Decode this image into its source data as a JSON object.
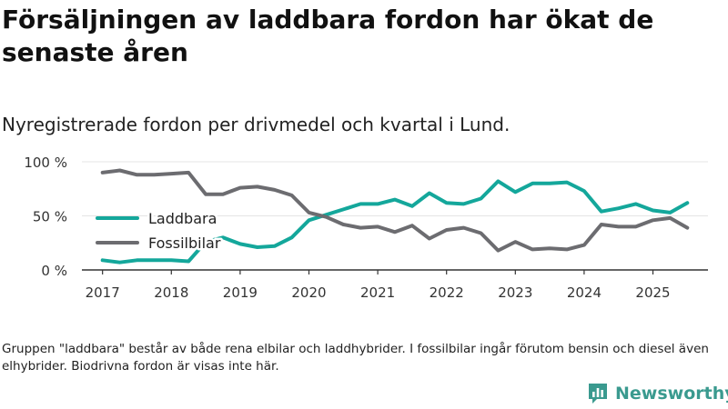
{
  "header": {
    "title": "Försäljningen av laddbara fordon har ökat de senaste åren",
    "subtitle": "Nyregistrerade fordon per drivmedel och kvartal i Lund."
  },
  "footer": {
    "note": "Gruppen \"laddbara\" består av både rena elbilar och laddhybrider. I fossilbilar ingår förutom bensin och diesel även elhybrider. Biodrivna fordon är visas inte här.",
    "brand": "Newsworthy"
  },
  "colors": {
    "laddbara": "#14a79b",
    "fossil": "#6c6c70",
    "brand": "#3a9a8f"
  },
  "chart_data": {
    "type": "line",
    "title": "Försäljningen av laddbara fordon har ökat de senaste åren",
    "subtitle": "Nyregistrerade fordon per drivmedel och kvartal i Lund.",
    "xlabel": "",
    "ylabel": "",
    "x": [
      2017.0,
      2017.25,
      2017.5,
      2017.75,
      2018.0,
      2018.25,
      2018.5,
      2018.75,
      2019.0,
      2019.25,
      2019.5,
      2019.75,
      2020.0,
      2020.25,
      2020.5,
      2020.75,
      2021.0,
      2021.25,
      2021.5,
      2021.75,
      2022.0,
      2022.25,
      2022.5,
      2022.75,
      2023.0,
      2023.25,
      2023.5,
      2023.75,
      2024.0,
      2024.25,
      2024.5,
      2024.75,
      2025.0,
      2025.25,
      2025.5
    ],
    "xlim": [
      2016.7,
      2025.8
    ],
    "ylim": [
      0,
      100
    ],
    "x_ticks": [
      2017,
      2018,
      2019,
      2020,
      2021,
      2022,
      2023,
      2024,
      2025
    ],
    "x_tick_labels": [
      "2017",
      "2018",
      "2019",
      "2020",
      "2021",
      "2022",
      "2023",
      "2024",
      "2025"
    ],
    "y_ticks": [
      0,
      50,
      100
    ],
    "y_tick_labels": [
      "0 %",
      "50 %",
      "100 %"
    ],
    "grid": true,
    "legend_position": "left",
    "series": [
      {
        "name": "Laddbara",
        "color": "#14a79b",
        "values": [
          9,
          7,
          9,
          9,
          9,
          8,
          26,
          30,
          24,
          21,
          22,
          30,
          46,
          51,
          56,
          61,
          61,
          65,
          59,
          71,
          62,
          61,
          66,
          82,
          72,
          80,
          80,
          81,
          73,
          54,
          57,
          61,
          55,
          53,
          62
        ]
      },
      {
        "name": "Fossilbilar",
        "color": "#6c6c70",
        "values": [
          90,
          92,
          88,
          88,
          89,
          90,
          70,
          70,
          76,
          77,
          74,
          69,
          53,
          49,
          42,
          39,
          40,
          35,
          41,
          29,
          37,
          39,
          34,
          18,
          26,
          19,
          20,
          19,
          23,
          42,
          40,
          40,
          46,
          48,
          39
        ]
      }
    ]
  }
}
